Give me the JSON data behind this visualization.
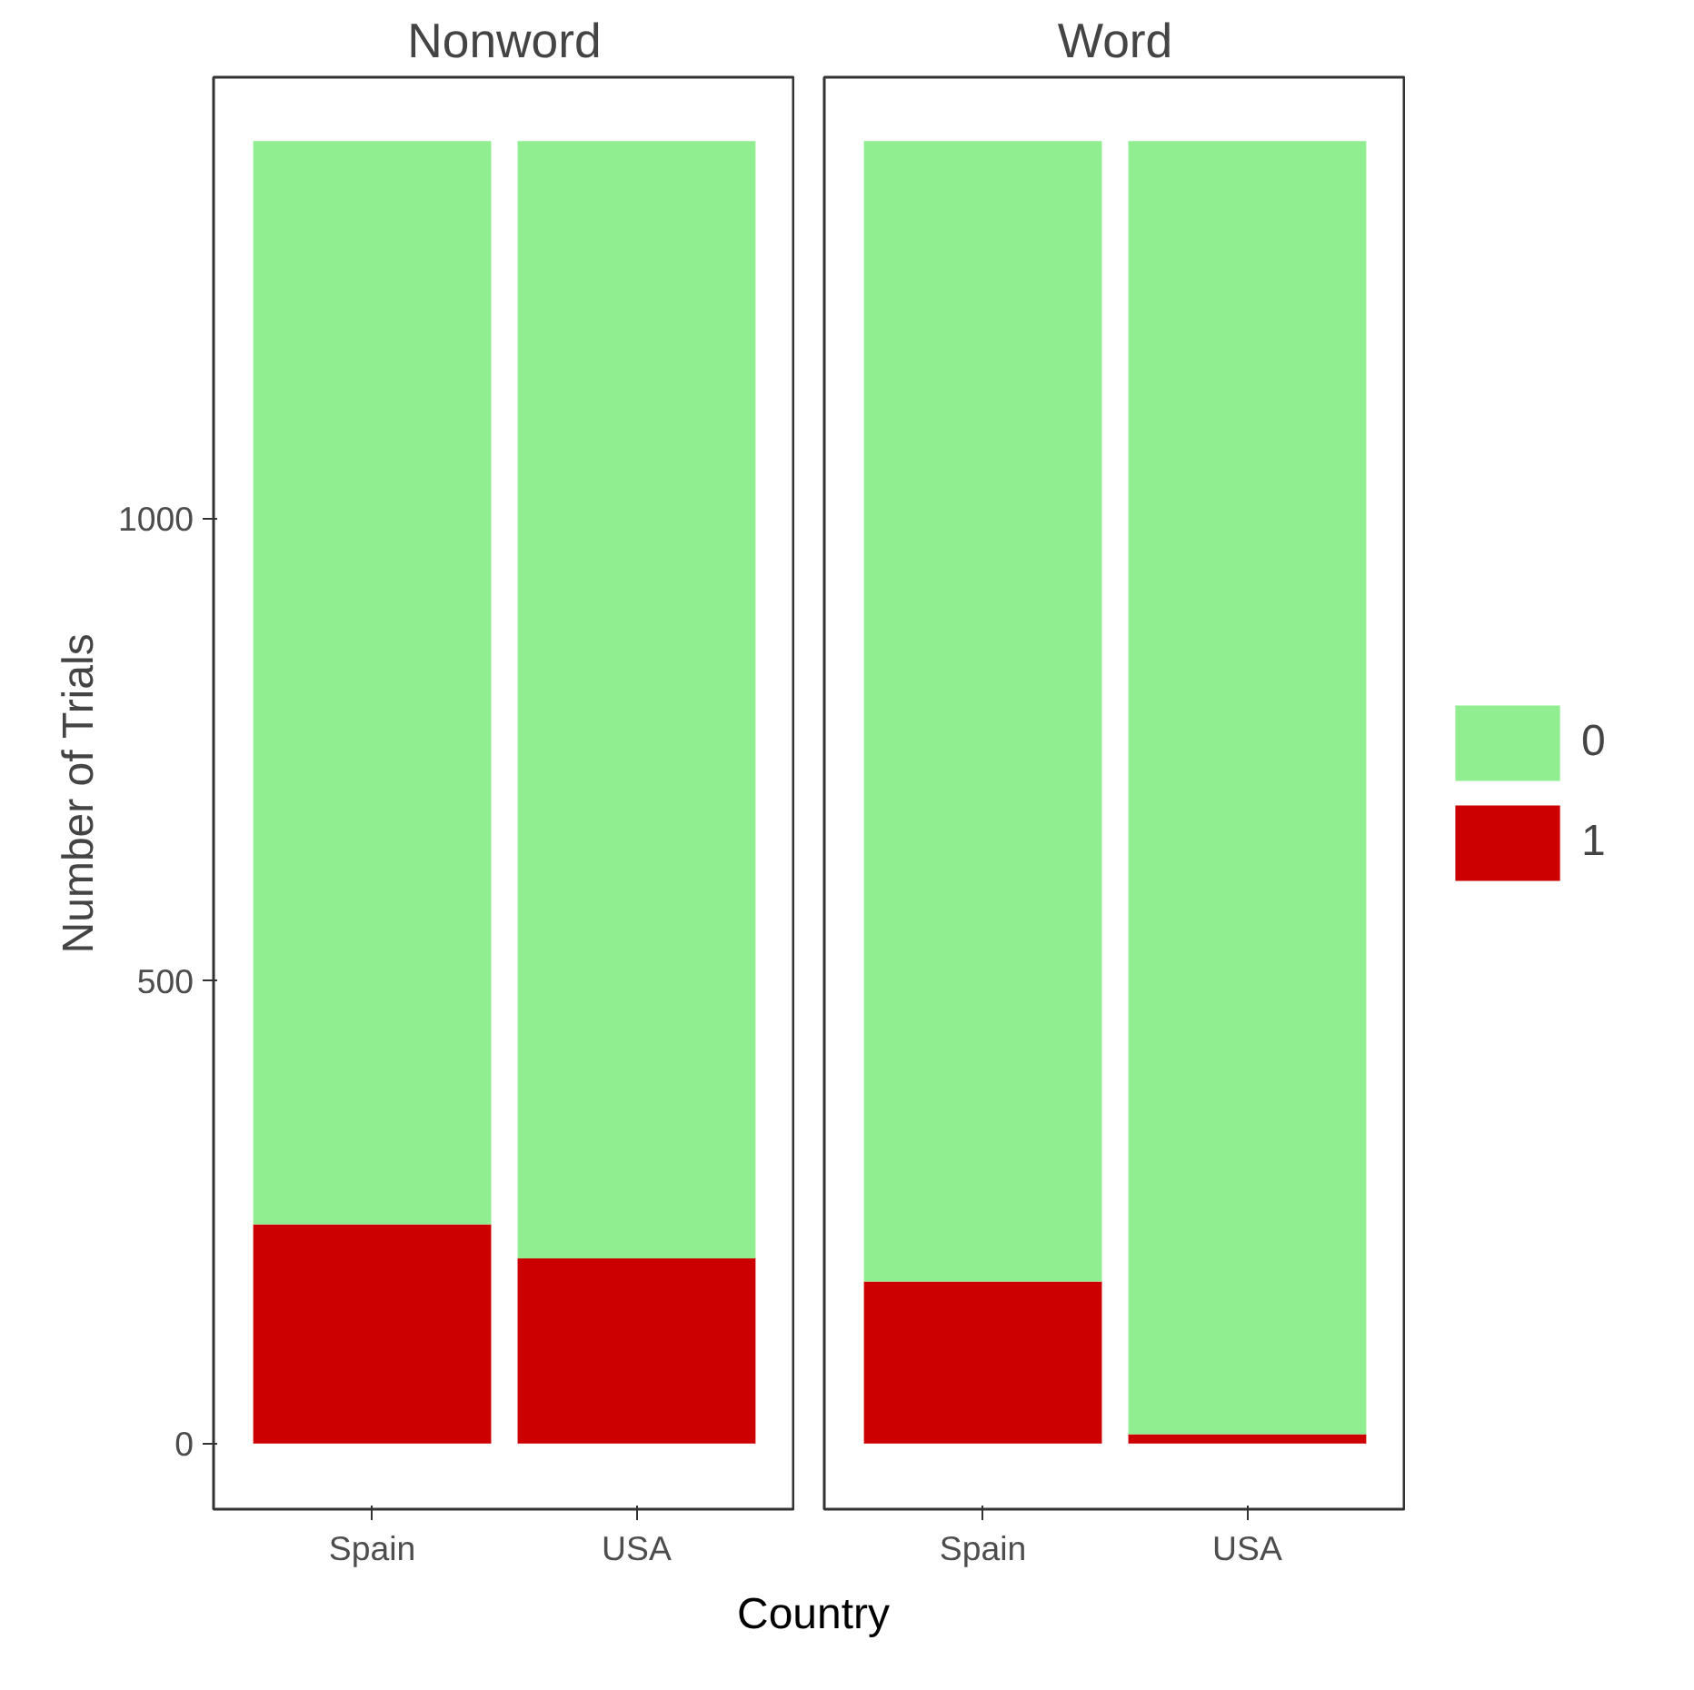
{
  "chart_data": [
    {
      "type": "bar",
      "title": "Nonword",
      "ylabel": "Number of Trials",
      "xlabel": "Country",
      "categories": [
        "Spain",
        "USA"
      ],
      "stacked": true,
      "series": [
        {
          "color": "#cc0000",
          "values": [
            237,
            200
          ]
        },
        {
          "color": "#90ee90",
          "values": [
            1171,
            1208
          ]
        }
      ],
      "ylim": [
        -71,
        1477
      ],
      "yticks": [
        0,
        500,
        1000
      ],
      "grid": false,
      "legend": false
    },
    {
      "type": "bar",
      "title": "Word",
      "categories": [
        "Spain",
        "USA"
      ],
      "stacked": true,
      "series": [
        {
          "name": "1",
          "color": "#cc0000",
          "values": [
            175,
            10
          ]
        },
        {
          "name": "0",
          "color": "#90ee90",
          "values": [
            1233,
            1398
          ]
        }
      ],
      "ylim": [
        -71,
        1477
      ],
      "yticks": [
        0,
        500,
        1000
      ],
      "grid": false,
      "legend": "right",
      "tick_labels": "x"
    }
  ]
}
